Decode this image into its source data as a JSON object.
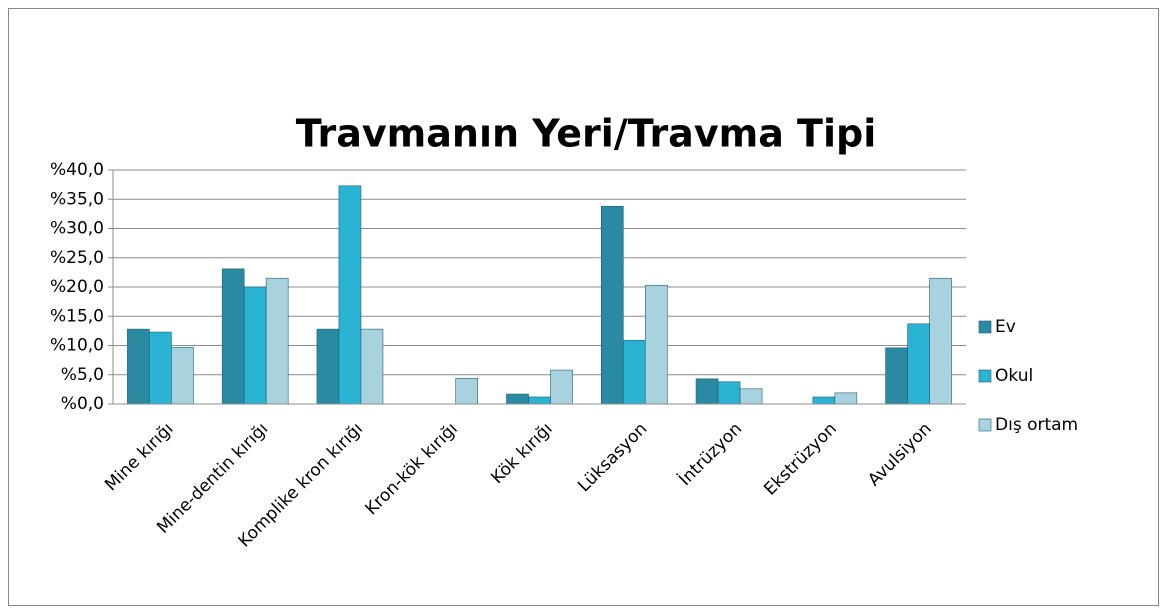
{
  "chart_data": {
    "type": "bar",
    "title": "Travmanın Yeri/Travma Tipi",
    "categories": [
      "Mine kırığı",
      "Mine-dentin kırığı",
      "Komplike kron kırığı",
      "Kron-kök kırığı",
      "Kök kırığı",
      "Lüksasyon",
      "İntrüzyon",
      "Ekstrüzyon",
      "Avulsiyon"
    ],
    "series": [
      {
        "name": "Ev",
        "color": "#2a8aa3",
        "values": [
          12.8,
          23.1,
          12.8,
          0,
          1.7,
          33.8,
          4.3,
          0,
          9.6
        ]
      },
      {
        "name": "Okul",
        "color": "#2bb3d3",
        "values": [
          12.3,
          20.0,
          37.3,
          0,
          1.2,
          10.9,
          3.8,
          1.2,
          13.7
        ]
      },
      {
        "name": "Dış ortam",
        "color": "#a9d2df",
        "values": [
          9.7,
          21.5,
          12.8,
          4.4,
          5.8,
          20.3,
          2.6,
          1.9,
          21.5
        ]
      }
    ],
    "ylim": [
      0,
      40
    ],
    "yticks": [
      {
        "value": 0,
        "label": "%0,0"
      },
      {
        "value": 5,
        "label": "%5,0"
      },
      {
        "value": 10,
        "label": "%10,0"
      },
      {
        "value": 15,
        "label": "%15,0"
      },
      {
        "value": 20,
        "label": "%20,0"
      },
      {
        "value": 25,
        "label": "%25,0"
      },
      {
        "value": 30,
        "label": "%30,0"
      },
      {
        "value": 35,
        "label": "%35,0"
      },
      {
        "value": 40,
        "label": "%40,0"
      }
    ],
    "grid": true,
    "legend": "right"
  }
}
